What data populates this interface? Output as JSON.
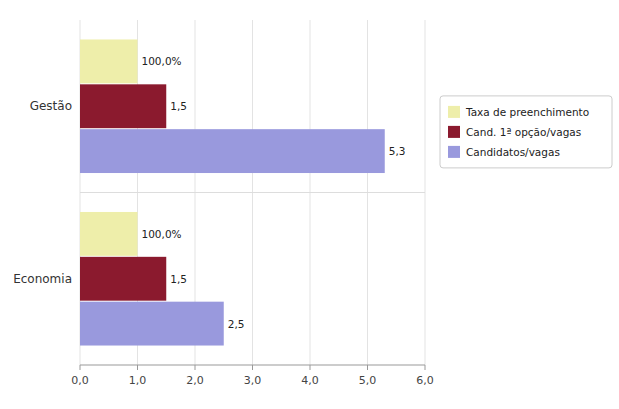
{
  "chart_data": {
    "type": "bar",
    "orientation": "horizontal",
    "categories": [
      "Gestão",
      "Economia"
    ],
    "series": [
      {
        "name": "Taxa de preenchimento",
        "color": "#eeeeaa",
        "values": [
          1.0,
          1.0
        ],
        "value_labels": [
          "100,0%",
          "100,0%"
        ]
      },
      {
        "name": "Cand. 1ª opção/vagas",
        "color": "#8b1a2e",
        "values": [
          1.5,
          1.5
        ],
        "value_labels": [
          "1,5",
          "1,5"
        ]
      },
      {
        "name": "Candidatos/vagas",
        "color": "#9999dd",
        "values": [
          5.3,
          2.5
        ],
        "value_labels": [
          "5,3",
          "2,5"
        ]
      }
    ],
    "xlim": [
      0.0,
      6.0
    ],
    "xticks": [
      {
        "value": 0.0,
        "label": "0,0"
      },
      {
        "value": 1.0,
        "label": "1,0"
      },
      {
        "value": 2.0,
        "label": "2,0"
      },
      {
        "value": 3.0,
        "label": "3,0"
      },
      {
        "value": 4.0,
        "label": "4,0"
      },
      {
        "value": 5.0,
        "label": "5,0"
      },
      {
        "value": 6.0,
        "label": "6,0"
      }
    ],
    "grid": true,
    "data_labels": true,
    "legend": "right"
  }
}
